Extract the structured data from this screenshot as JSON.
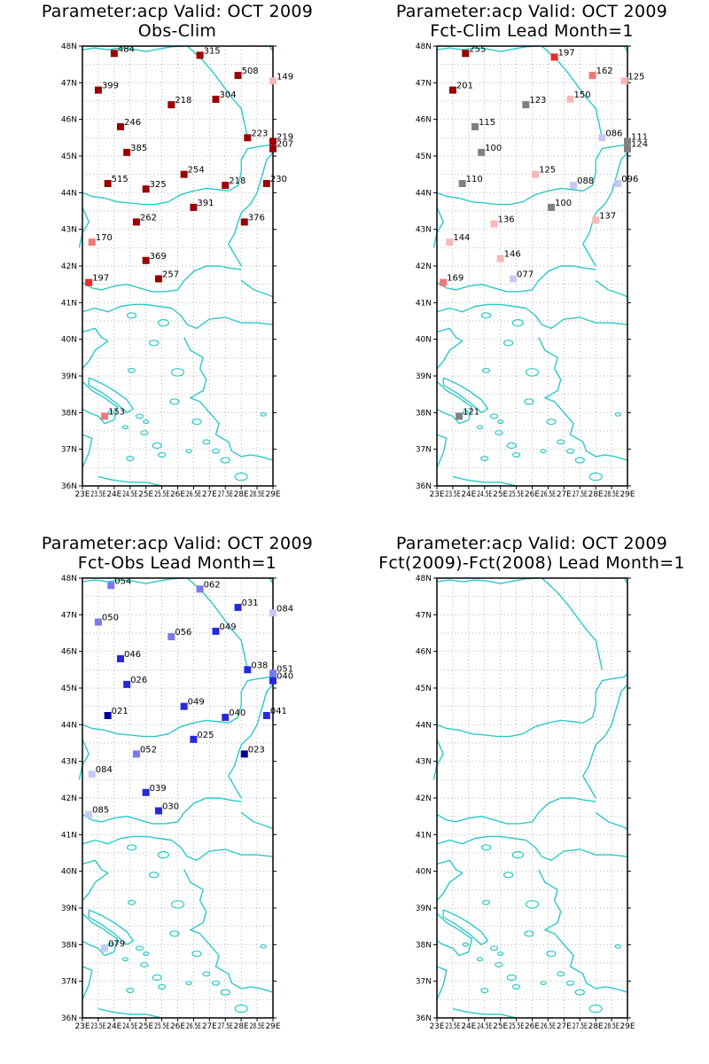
{
  "lat_labels": [
    "36N",
    "37N",
    "38N",
    "39N",
    "40N",
    "41N",
    "42N",
    "43N",
    "44N",
    "45N",
    "46N",
    "47N",
    "48N"
  ],
  "lon_labels": [
    "23E",
    "23.5E",
    "24E",
    "24.5E",
    "25E",
    "25.5E",
    "26E",
    "26.5E",
    "27E",
    "27.5E",
    "28E",
    "28.5E",
    "29E"
  ],
  "colors": {
    "coast": "#2ec8c8",
    "grid": "#9a9a9a",
    "dark_red": "#9b0000",
    "red": "#f02828",
    "salmon": "#f27878",
    "light_red": "#f8b8b8",
    "grey": "#808080",
    "light_blue": "#c8c8f8",
    "mid_blue": "#7a7af0",
    "blue": "#2828e0",
    "navy": "#0000a0"
  },
  "panels": [
    {
      "id": "obs-clim",
      "title1": "Parameter:acp Valid: OCT 2009",
      "title2": "Obs-Clim",
      "stations": [
        {
          "lon": 24.0,
          "lat": 47.8,
          "label": "484",
          "color": "#9b0000"
        },
        {
          "lon": 26.7,
          "lat": 47.75,
          "label": "315",
          "color": "#9b0000"
        },
        {
          "lon": 23.5,
          "lat": 46.8,
          "label": "399",
          "color": "#9b0000"
        },
        {
          "lon": 27.9,
          "lat": 47.2,
          "label": "508",
          "color": "#9b0000"
        },
        {
          "lon": 29.0,
          "lat": 47.05,
          "label": "149",
          "color": "#f8b8b8"
        },
        {
          "lon": 25.8,
          "lat": 46.4,
          "label": "218",
          "color": "#9b0000"
        },
        {
          "lon": 27.2,
          "lat": 46.55,
          "label": "304",
          "color": "#9b0000"
        },
        {
          "lon": 24.2,
          "lat": 45.8,
          "label": "246",
          "color": "#9b0000"
        },
        {
          "lon": 28.2,
          "lat": 45.5,
          "label": "223",
          "color": "#9b0000"
        },
        {
          "lon": 29.0,
          "lat": 45.4,
          "label": "219",
          "color": "#9b0000"
        },
        {
          "lon": 29.0,
          "lat": 45.2,
          "label": "207",
          "color": "#9b0000"
        },
        {
          "lon": 24.4,
          "lat": 45.1,
          "label": "385",
          "color": "#9b0000"
        },
        {
          "lon": 26.2,
          "lat": 44.5,
          "label": "254",
          "color": "#9b0000"
        },
        {
          "lon": 23.8,
          "lat": 44.25,
          "label": "515",
          "color": "#9b0000"
        },
        {
          "lon": 25.0,
          "lat": 44.1,
          "label": "325",
          "color": "#9b0000"
        },
        {
          "lon": 27.5,
          "lat": 44.2,
          "label": "218",
          "color": "#9b0000"
        },
        {
          "lon": 28.8,
          "lat": 44.25,
          "label": "230",
          "color": "#9b0000"
        },
        {
          "lon": 26.5,
          "lat": 43.6,
          "label": "391",
          "color": "#9b0000"
        },
        {
          "lon": 24.7,
          "lat": 43.2,
          "label": "262",
          "color": "#9b0000"
        },
        {
          "lon": 28.1,
          "lat": 43.2,
          "label": "376",
          "color": "#9b0000"
        },
        {
          "lon": 23.3,
          "lat": 42.65,
          "label": "170",
          "color": "#f27878"
        },
        {
          "lon": 25.0,
          "lat": 42.15,
          "label": "369",
          "color": "#9b0000"
        },
        {
          "lon": 25.4,
          "lat": 41.65,
          "label": "257",
          "color": "#9b0000"
        },
        {
          "lon": 23.2,
          "lat": 41.55,
          "label": "197",
          "color": "#f02828"
        },
        {
          "lon": 23.7,
          "lat": 37.9,
          "label": "153",
          "color": "#f27878"
        }
      ]
    },
    {
      "id": "fct-clim",
      "title1": "Parameter:acp Valid: OCT 2009",
      "title2": "Fct-Clim Lead Month=1",
      "stations": [
        {
          "lon": 23.9,
          "lat": 47.8,
          "label": "255",
          "color": "#9b0000"
        },
        {
          "lon": 26.7,
          "lat": 47.7,
          "label": "197",
          "color": "#f02828"
        },
        {
          "lon": 23.5,
          "lat": 46.8,
          "label": "201",
          "color": "#9b0000"
        },
        {
          "lon": 27.9,
          "lat": 47.2,
          "label": "162",
          "color": "#f27878"
        },
        {
          "lon": 28.9,
          "lat": 47.05,
          "label": "125",
          "color": "#f8b8b8"
        },
        {
          "lon": 25.8,
          "lat": 46.4,
          "label": "123",
          "color": "#808080"
        },
        {
          "lon": 27.2,
          "lat": 46.55,
          "label": "150",
          "color": "#f8b8b8"
        },
        {
          "lon": 24.2,
          "lat": 45.8,
          "label": "115",
          "color": "#808080"
        },
        {
          "lon": 28.2,
          "lat": 45.5,
          "label": "086",
          "color": "#c8c8f8"
        },
        {
          "lon": 29.0,
          "lat": 45.4,
          "label": "111",
          "color": "#808080"
        },
        {
          "lon": 29.0,
          "lat": 45.2,
          "label": "124",
          "color": "#808080"
        },
        {
          "lon": 24.4,
          "lat": 45.1,
          "label": "100",
          "color": "#808080"
        },
        {
          "lon": 26.1,
          "lat": 44.5,
          "label": "125",
          "color": "#f8b8b8"
        },
        {
          "lon": 23.8,
          "lat": 44.25,
          "label": "110",
          "color": "#808080"
        },
        {
          "lon": 27.3,
          "lat": 44.2,
          "label": "088",
          "color": "#c8c8f8"
        },
        {
          "lon": 28.7,
          "lat": 44.25,
          "label": "096",
          "color": "#c8c8f8"
        },
        {
          "lon": 26.6,
          "lat": 43.6,
          "label": "100",
          "color": "#808080"
        },
        {
          "lon": 24.8,
          "lat": 43.15,
          "label": "136",
          "color": "#f8b8b8"
        },
        {
          "lon": 28.0,
          "lat": 43.25,
          "label": "137",
          "color": "#f8b8b8"
        },
        {
          "lon": 23.4,
          "lat": 42.65,
          "label": "144",
          "color": "#f8b8b8"
        },
        {
          "lon": 25.0,
          "lat": 42.2,
          "label": "146",
          "color": "#f8b8b8"
        },
        {
          "lon": 25.4,
          "lat": 41.65,
          "label": "077",
          "color": "#c8c8f8"
        },
        {
          "lon": 23.2,
          "lat": 41.55,
          "label": "169",
          "color": "#f27878"
        },
        {
          "lon": 23.7,
          "lat": 37.9,
          "label": "121",
          "color": "#808080"
        }
      ]
    },
    {
      "id": "fct-obs",
      "title1": "Parameter:acp Valid: OCT 2009",
      "title2": "Fct-Obs Lead Month=1",
      "stations": [
        {
          "lon": 23.9,
          "lat": 47.8,
          "label": "054",
          "color": "#7a7af0"
        },
        {
          "lon": 26.7,
          "lat": 47.7,
          "label": "062",
          "color": "#7a7af0"
        },
        {
          "lon": 23.5,
          "lat": 46.8,
          "label": "050",
          "color": "#7a7af0"
        },
        {
          "lon": 27.9,
          "lat": 47.2,
          "label": "031",
          "color": "#2828e0"
        },
        {
          "lon": 29.0,
          "lat": 47.05,
          "label": "084",
          "color": "#c8c8f8"
        },
        {
          "lon": 25.8,
          "lat": 46.4,
          "label": "056",
          "color": "#7a7af0"
        },
        {
          "lon": 27.2,
          "lat": 46.55,
          "label": "049",
          "color": "#2828e0"
        },
        {
          "lon": 24.2,
          "lat": 45.8,
          "label": "046",
          "color": "#2828e0"
        },
        {
          "lon": 28.2,
          "lat": 45.5,
          "label": "038",
          "color": "#2828e0"
        },
        {
          "lon": 29.0,
          "lat": 45.4,
          "label": "051",
          "color": "#7a7af0"
        },
        {
          "lon": 29.0,
          "lat": 45.2,
          "label": "040",
          "color": "#2828e0"
        },
        {
          "lon": 24.4,
          "lat": 45.1,
          "label": "026",
          "color": "#2828e0"
        },
        {
          "lon": 26.2,
          "lat": 44.5,
          "label": "049",
          "color": "#2828e0"
        },
        {
          "lon": 23.8,
          "lat": 44.25,
          "label": "021",
          "color": "#0000a0"
        },
        {
          "lon": 27.5,
          "lat": 44.2,
          "label": "040",
          "color": "#2828e0"
        },
        {
          "lon": 28.8,
          "lat": 44.25,
          "label": "041",
          "color": "#2828e0"
        },
        {
          "lon": 26.5,
          "lat": 43.6,
          "label": "025",
          "color": "#2828e0"
        },
        {
          "lon": 24.7,
          "lat": 43.2,
          "label": "052",
          "color": "#7a7af0"
        },
        {
          "lon": 28.1,
          "lat": 43.2,
          "label": "023",
          "color": "#0000a0"
        },
        {
          "lon": 23.3,
          "lat": 42.65,
          "label": "084",
          "color": "#c8c8f8"
        },
        {
          "lon": 25.0,
          "lat": 42.15,
          "label": "039",
          "color": "#2828e0"
        },
        {
          "lon": 25.4,
          "lat": 41.65,
          "label": "030",
          "color": "#2828e0"
        },
        {
          "lon": 23.2,
          "lat": 41.55,
          "label": "085",
          "color": "#c8c8f8"
        },
        {
          "lon": 23.7,
          "lat": 37.9,
          "label": "079",
          "color": "#c8c8f8"
        }
      ]
    },
    {
      "id": "fct-diff",
      "title1": "Parameter:acp Valid: OCT 2009",
      "title2": "Fct(2009)-Fct(2008) Lead Month=1",
      "stations": []
    }
  ]
}
